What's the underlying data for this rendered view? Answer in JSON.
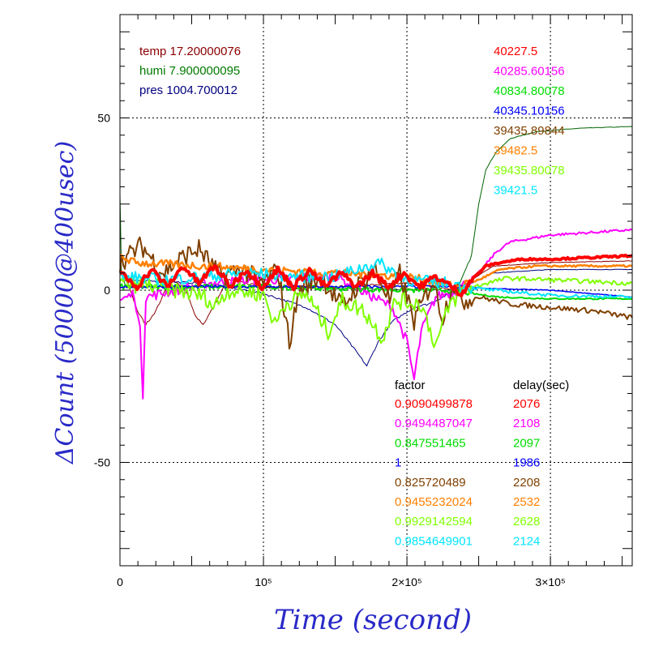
{
  "chart_data": {
    "type": "line",
    "xlabel": "Time (second)",
    "ylabel": "ΔCount (50000@400usec)",
    "xlim": [
      0,
      357000
    ],
    "ylim": [
      -80,
      80
    ],
    "x_ticks": [
      {
        "value": 0,
        "label": "0"
      },
      {
        "value": 100000,
        "label": "10⁵"
      },
      {
        "value": 200000,
        "label": "2×10⁵"
      },
      {
        "value": 300000,
        "label": "3×10⁵"
      }
    ],
    "y_ticks": [
      {
        "value": 50,
        "label": "50"
      },
      {
        "value": 0,
        "label": "0"
      },
      {
        "value": -50,
        "label": "-50"
      }
    ],
    "grid": "dotted at major ticks",
    "env_labels": [
      {
        "text": "temp 17.20000076",
        "color": "#8b0000"
      },
      {
        "text": "humi 7.900000095",
        "color": "#007a00"
      },
      {
        "text": "pres 1004.700012",
        "color": "#000080"
      }
    ],
    "baseline_header": "",
    "baselines": [
      {
        "text": "40227.5",
        "color": "#ff0000"
      },
      {
        "text": "40285.60156",
        "color": "#ff00ff"
      },
      {
        "text": "40834.80078",
        "color": "#00dd00"
      },
      {
        "text": "40345.10156",
        "color": "#0000ff"
      },
      {
        "text": "39435.89844",
        "color": "#7f4000"
      },
      {
        "text": "39482.5",
        "color": "#ff8000"
      },
      {
        "text": "39435.80078",
        "color": "#80ff00"
      },
      {
        "text": "39421.5",
        "color": "#00e5ff"
      }
    ],
    "table_headers": {
      "factor": "factor",
      "delay": "delay(sec)"
    },
    "table_rows": [
      {
        "factor": "0.9090499878",
        "delay": "2076",
        "color": "#ff0000"
      },
      {
        "factor": "0.9494487047",
        "delay": "2108",
        "color": "#ff00ff"
      },
      {
        "factor": "0.847551465",
        "delay": "2097",
        "color": "#00dd00"
      },
      {
        "factor": "1",
        "delay": "1986",
        "color": "#0000ff"
      },
      {
        "factor": "0.825720489",
        "delay": "2208",
        "color": "#7f4000"
      },
      {
        "factor": "0.9455232024",
        "delay": "2532",
        "color": "#ff8000"
      },
      {
        "factor": "0.9929142594",
        "delay": "2628",
        "color": "#80ff00"
      },
      {
        "factor": "0.9854649901",
        "delay": "2124",
        "color": "#00e5ff"
      }
    ],
    "series": [
      {
        "color": "#006400",
        "width": 1,
        "points": [
          [
            0,
            28
          ],
          [
            1000,
            5
          ],
          [
            4000,
            1
          ],
          [
            60000,
            1
          ],
          [
            150000,
            0.5
          ],
          [
            235000,
            0
          ],
          [
            245000,
            10
          ],
          [
            250000,
            25
          ],
          [
            255000,
            35
          ],
          [
            262000,
            40
          ],
          [
            272000,
            44
          ],
          [
            290000,
            46
          ],
          [
            320000,
            47
          ],
          [
            357000,
            47.5
          ]
        ]
      },
      {
        "color": "#8b0000",
        "width": 1,
        "points": [
          [
            0,
            6
          ],
          [
            5000,
            3
          ],
          [
            12000,
            -6
          ],
          [
            18000,
            -10
          ],
          [
            25000,
            -6
          ],
          [
            35000,
            3
          ],
          [
            45000,
            1
          ],
          [
            52000,
            -7
          ],
          [
            58000,
            -10
          ],
          [
            65000,
            -5
          ],
          [
            75000,
            3
          ],
          [
            100000,
            1
          ],
          [
            150000,
            1
          ],
          [
            200000,
            2
          ],
          [
            235000,
            0
          ],
          [
            245000,
            3
          ],
          [
            260000,
            7
          ],
          [
            300000,
            8
          ],
          [
            357000,
            8.5
          ]
        ]
      },
      {
        "color": "#000080",
        "width": 1,
        "points": [
          [
            0,
            3
          ],
          [
            60000,
            2
          ],
          [
            100000,
            -1
          ],
          [
            130000,
            -5
          ],
          [
            150000,
            -10
          ],
          [
            165000,
            -18
          ],
          [
            172000,
            -22
          ],
          [
            180000,
            -15
          ],
          [
            190000,
            -9
          ],
          [
            205000,
            -5
          ],
          [
            215000,
            -4
          ],
          [
            225000,
            -2
          ],
          [
            235000,
            0
          ],
          [
            245000,
            2
          ],
          [
            260000,
            5
          ],
          [
            300000,
            6
          ],
          [
            357000,
            6
          ]
        ]
      },
      {
        "color": "#ff00ff",
        "width": 2,
        "points": [
          [
            0,
            -3
          ],
          [
            10000,
            -1
          ],
          [
            14000,
            -12
          ],
          [
            16000,
            -30
          ],
          [
            18000,
            -2
          ],
          [
            60000,
            2
          ],
          [
            100000,
            3
          ],
          [
            150000,
            4
          ],
          [
            190000,
            -5
          ],
          [
            200000,
            -15
          ],
          [
            205000,
            -26
          ],
          [
            210000,
            -12
          ],
          [
            220000,
            -2
          ],
          [
            235000,
            0
          ],
          [
            250000,
            5
          ],
          [
            262000,
            11
          ],
          [
            272000,
            14
          ],
          [
            300000,
            16
          ],
          [
            357000,
            17.5
          ]
        ]
      },
      {
        "color": "#00dd00",
        "width": 2,
        "points": [
          [
            0,
            1
          ],
          [
            100000,
            1
          ],
          [
            200000,
            0
          ],
          [
            235000,
            0
          ],
          [
            245000,
            -1
          ],
          [
            265000,
            -2
          ],
          [
            300000,
            -2.5
          ],
          [
            357000,
            -2.5
          ]
        ]
      },
      {
        "color": "#0000ff",
        "width": 1.5,
        "points": [
          [
            0,
            1
          ],
          [
            100000,
            1
          ],
          [
            200000,
            1
          ],
          [
            240000,
            1
          ],
          [
            255000,
            0.5
          ],
          [
            300000,
            0
          ],
          [
            357000,
            -2
          ]
        ]
      },
      {
        "color": "#7f4000",
        "width": 2,
        "points": [
          [
            0,
            8
          ],
          [
            15000,
            13
          ],
          [
            30000,
            5
          ],
          [
            45000,
            10
          ],
          [
            55000,
            12
          ],
          [
            70000,
            4
          ],
          [
            85000,
            6
          ],
          [
            100000,
            2
          ],
          [
            110000,
            6
          ],
          [
            118000,
            -15
          ],
          [
            125000,
            0
          ],
          [
            140000,
            4
          ],
          [
            155000,
            -5
          ],
          [
            165000,
            1
          ],
          [
            178000,
            6
          ],
          [
            188000,
            -3
          ],
          [
            195000,
            5
          ],
          [
            205000,
            -9
          ],
          [
            218000,
            3
          ],
          [
            225000,
            -8
          ],
          [
            232000,
            2
          ],
          [
            240000,
            -3
          ],
          [
            250000,
            -2
          ],
          [
            262000,
            -3
          ],
          [
            272000,
            -4
          ],
          [
            300000,
            -5
          ],
          [
            330000,
            -6
          ],
          [
            357000,
            -8
          ]
        ]
      },
      {
        "color": "#ff8000",
        "width": 2.5,
        "points": [
          [
            0,
            10
          ],
          [
            10000,
            8
          ],
          [
            60000,
            7
          ],
          [
            100000,
            6
          ],
          [
            150000,
            5
          ],
          [
            200000,
            4
          ],
          [
            235000,
            1
          ],
          [
            250000,
            3
          ],
          [
            265000,
            6
          ],
          [
            290000,
            7
          ],
          [
            357000,
            7
          ]
        ]
      },
      {
        "color": "#80ff00",
        "width": 2,
        "points": [
          [
            0,
            2
          ],
          [
            30000,
            1
          ],
          [
            60000,
            -2
          ],
          [
            65000,
            -5
          ],
          [
            75000,
            0
          ],
          [
            100000,
            -1
          ],
          [
            108000,
            -10
          ],
          [
            115000,
            -4
          ],
          [
            130000,
            -1
          ],
          [
            145000,
            -12
          ],
          [
            155000,
            -3
          ],
          [
            170000,
            -6
          ],
          [
            183000,
            -14
          ],
          [
            192000,
            -3
          ],
          [
            210000,
            -4
          ],
          [
            220000,
            -16
          ],
          [
            230000,
            -4
          ],
          [
            240000,
            0
          ],
          [
            255000,
            2
          ],
          [
            270000,
            3.5
          ],
          [
            300000,
            3
          ],
          [
            357000,
            2
          ]
        ]
      },
      {
        "color": "#00e5ff",
        "width": 2,
        "points": [
          [
            0,
            4
          ],
          [
            30000,
            3
          ],
          [
            60000,
            4
          ],
          [
            90000,
            5
          ],
          [
            120000,
            4
          ],
          [
            150000,
            4
          ],
          [
            180000,
            8
          ],
          [
            200000,
            3
          ],
          [
            230000,
            2
          ],
          [
            240000,
            1
          ],
          [
            260000,
            0
          ],
          [
            300000,
            -1.5
          ],
          [
            357000,
            -2
          ]
        ]
      },
      {
        "color": "#ff0000",
        "width": 4,
        "points": [
          [
            0,
            5
          ],
          [
            12000,
            1
          ],
          [
            22000,
            6
          ],
          [
            33000,
            1
          ],
          [
            44000,
            7
          ],
          [
            55000,
            2
          ],
          [
            66000,
            7
          ],
          [
            77000,
            1
          ],
          [
            88000,
            6
          ],
          [
            99000,
            1
          ],
          [
            110000,
            6
          ],
          [
            121000,
            1
          ],
          [
            132000,
            6
          ],
          [
            143000,
            1
          ],
          [
            154000,
            5
          ],
          [
            165000,
            1
          ],
          [
            176000,
            5
          ],
          [
            187000,
            1
          ],
          [
            198000,
            5
          ],
          [
            209000,
            1
          ],
          [
            220000,
            4
          ],
          [
            231000,
            1
          ],
          [
            238000,
            -1
          ],
          [
            245000,
            3
          ],
          [
            255000,
            7
          ],
          [
            265000,
            8
          ],
          [
            280000,
            9
          ],
          [
            300000,
            9
          ],
          [
            330000,
            9.5
          ],
          [
            357000,
            10
          ]
        ]
      }
    ]
  }
}
